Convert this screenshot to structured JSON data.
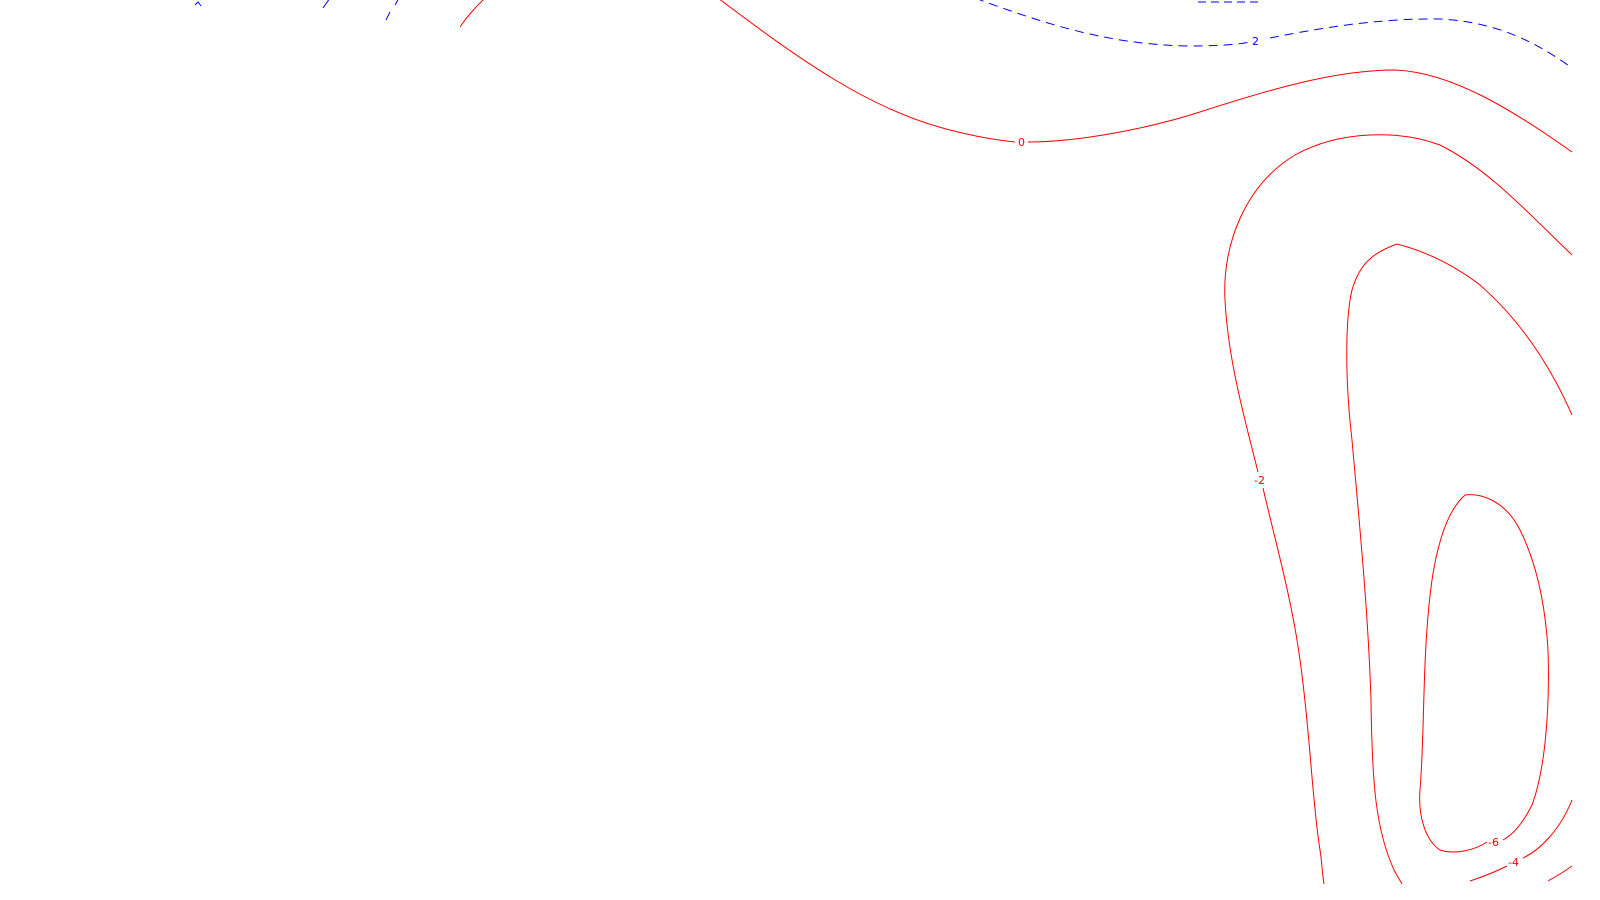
{
  "chart_data": {
    "type": "contour",
    "title": "",
    "xlabel": "",
    "ylabel": "",
    "grid": false,
    "colors": {
      "positive": "#0000ff",
      "negative": "#ff0000",
      "zero": "#ff0000"
    },
    "contours": [
      {
        "level": 2,
        "label": "2",
        "style": "dashed",
        "sign": "positive"
      },
      {
        "level": 0,
        "label": "0",
        "style": "solid",
        "sign": "zero"
      },
      {
        "level": -2,
        "label": "-2",
        "style": "solid",
        "sign": "negative"
      },
      {
        "level": -4,
        "label": "-4",
        "style": "solid",
        "sign": "negative"
      },
      {
        "level": -6,
        "label": "-6",
        "style": "solid",
        "sign": "negative"
      }
    ]
  }
}
